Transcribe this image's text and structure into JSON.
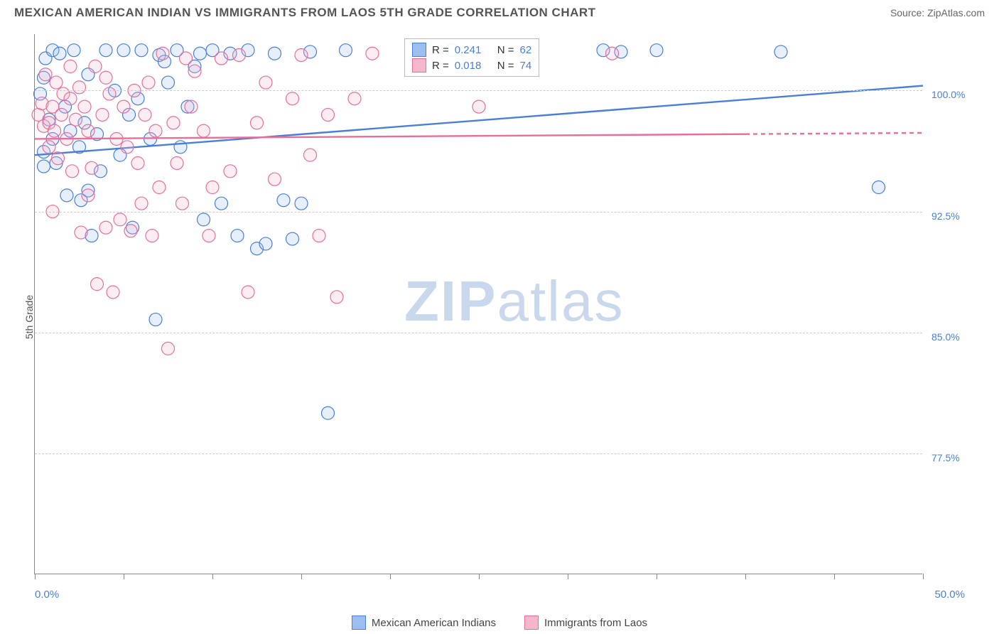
{
  "header": {
    "title": "MEXICAN AMERICAN INDIAN VS IMMIGRANTS FROM LAOS 5TH GRADE CORRELATION CHART",
    "source_prefix": "Source: ",
    "source_name": "ZipAtlas.com"
  },
  "chart": {
    "type": "scatter",
    "y_axis_label": "5th Grade",
    "xlim": [
      0,
      50
    ],
    "ylim": [
      70,
      103.5
    ],
    "x_tick_positions": [
      0,
      5,
      10,
      15,
      20,
      25,
      30,
      35,
      40,
      45,
      50
    ],
    "x_start_label": "0.0%",
    "x_end_label": "50.0%",
    "y_ticks": [
      {
        "value": 77.5,
        "label": "77.5%"
      },
      {
        "value": 85.0,
        "label": "85.0%"
      },
      {
        "value": 92.5,
        "label": "92.5%"
      },
      {
        "value": 100.0,
        "label": "100.0%"
      }
    ],
    "grid_color": "#cccccc",
    "axis_color": "#888888",
    "background_color": "#ffffff",
    "tick_label_color": "#4a7fd8",
    "marker_radius": 9,
    "marker_stroke_width": 1.2,
    "marker_fill_opacity": 0.25,
    "trend_line_width": 2.4,
    "trend_dash": "6,5",
    "series": [
      {
        "id": "mexican",
        "label": "Mexican American Indians",
        "color_stroke": "#4a7fd8",
        "color_fill": "#9cbef0",
        "R": "0.241",
        "N": "62",
        "trend": {
          "x1": 0,
          "y1": 96.0,
          "x2": 50,
          "y2": 100.3,
          "extrapolate_from": 50
        },
        "points": [
          [
            0.3,
            99.8
          ],
          [
            0.5,
            96.2
          ],
          [
            0.5,
            95.3
          ],
          [
            0.6,
            102.0
          ],
          [
            0.8,
            98.2
          ],
          [
            1.0,
            97.0
          ],
          [
            1.2,
            95.5
          ],
          [
            1.0,
            102.5
          ],
          [
            1.4,
            102.3
          ],
          [
            1.7,
            99.0
          ],
          [
            2.0,
            97.5
          ],
          [
            2.2,
            102.5
          ],
          [
            2.5,
            96.5
          ],
          [
            2.6,
            93.2
          ],
          [
            2.8,
            98.0
          ],
          [
            3.0,
            101.0
          ],
          [
            3.2,
            91.0
          ],
          [
            3.5,
            97.3
          ],
          [
            3.7,
            95.0
          ],
          [
            4.0,
            102.5
          ],
          [
            4.5,
            100.0
          ],
          [
            4.8,
            96.0
          ],
          [
            5.0,
            102.5
          ],
          [
            5.3,
            98.5
          ],
          [
            5.5,
            91.5
          ],
          [
            5.8,
            99.5
          ],
          [
            6.0,
            102.5
          ],
          [
            6.5,
            97.0
          ],
          [
            6.8,
            85.8
          ],
          [
            7.0,
            102.2
          ],
          [
            7.3,
            101.8
          ],
          [
            7.5,
            100.5
          ],
          [
            8.0,
            102.5
          ],
          [
            8.2,
            96.5
          ],
          [
            8.6,
            99.0
          ],
          [
            9.0,
            101.5
          ],
          [
            9.3,
            102.3
          ],
          [
            9.5,
            92.0
          ],
          [
            10.0,
            102.5
          ],
          [
            10.5,
            93.0
          ],
          [
            11.0,
            102.3
          ],
          [
            11.4,
            91.0
          ],
          [
            12.0,
            102.5
          ],
          [
            12.5,
            90.2
          ],
          [
            13.0,
            90.5
          ],
          [
            13.5,
            102.3
          ],
          [
            14.0,
            93.2
          ],
          [
            14.5,
            90.8
          ],
          [
            15.0,
            93.0
          ],
          [
            15.5,
            102.4
          ],
          [
            16.5,
            80.0
          ],
          [
            17.5,
            102.5
          ],
          [
            22.0,
            102.5
          ],
          [
            23.5,
            102.5
          ],
          [
            32.0,
            102.5
          ],
          [
            33.0,
            102.4
          ],
          [
            35.0,
            102.5
          ],
          [
            42.0,
            102.4
          ],
          [
            47.5,
            94.0
          ],
          [
            0.5,
            100.8
          ],
          [
            1.8,
            93.5
          ],
          [
            3.0,
            93.8
          ]
        ]
      },
      {
        "id": "laos",
        "label": "Immigrants from Laos",
        "color_stroke": "#e86f9a",
        "color_fill": "#f5b7cc",
        "R": "0.018",
        "N": "74",
        "trend": {
          "x1": 0,
          "y1": 97.0,
          "x2": 40,
          "y2": 97.3,
          "extrapolate_from": 40
        },
        "points": [
          [
            0.2,
            98.5
          ],
          [
            0.4,
            99.2
          ],
          [
            0.5,
            97.8
          ],
          [
            0.6,
            101.0
          ],
          [
            0.8,
            98.0
          ],
          [
            0.8,
            96.5
          ],
          [
            1.0,
            99.0
          ],
          [
            1.1,
            97.5
          ],
          [
            1.2,
            100.5
          ],
          [
            1.3,
            95.8
          ],
          [
            1.5,
            98.5
          ],
          [
            1.6,
            99.8
          ],
          [
            1.8,
            97.0
          ],
          [
            2.0,
            99.5
          ],
          [
            2.1,
            95.0
          ],
          [
            2.3,
            98.2
          ],
          [
            2.5,
            100.2
          ],
          [
            2.6,
            91.2
          ],
          [
            2.8,
            99.0
          ],
          [
            3.0,
            97.5
          ],
          [
            3.0,
            93.5
          ],
          [
            3.2,
            95.2
          ],
          [
            3.4,
            101.5
          ],
          [
            3.5,
            88.0
          ],
          [
            3.8,
            98.5
          ],
          [
            4.0,
            91.5
          ],
          [
            4.2,
            99.8
          ],
          [
            4.4,
            87.5
          ],
          [
            4.6,
            97.0
          ],
          [
            4.8,
            92.0
          ],
          [
            5.0,
            99.0
          ],
          [
            5.2,
            96.5
          ],
          [
            5.4,
            91.3
          ],
          [
            5.6,
            100.0
          ],
          [
            5.8,
            95.5
          ],
          [
            6.0,
            93.0
          ],
          [
            6.2,
            98.5
          ],
          [
            6.4,
            100.5
          ],
          [
            6.6,
            91.0
          ],
          [
            6.8,
            97.5
          ],
          [
            7.0,
            94.0
          ],
          [
            7.2,
            102.3
          ],
          [
            7.5,
            84.0
          ],
          [
            7.8,
            98.0
          ],
          [
            8.0,
            95.5
          ],
          [
            8.3,
            93.0
          ],
          [
            8.5,
            102.0
          ],
          [
            8.8,
            99.0
          ],
          [
            9.0,
            101.2
          ],
          [
            9.5,
            97.5
          ],
          [
            9.8,
            91.0
          ],
          [
            10.0,
            94.0
          ],
          [
            10.5,
            102.0
          ],
          [
            11.0,
            95.0
          ],
          [
            11.5,
            102.2
          ],
          [
            12.0,
            87.5
          ],
          [
            12.5,
            98.0
          ],
          [
            13.0,
            100.5
          ],
          [
            13.5,
            94.5
          ],
          [
            14.5,
            99.5
          ],
          [
            15.0,
            102.2
          ],
          [
            15.5,
            96.0
          ],
          [
            16.0,
            91.0
          ],
          [
            16.5,
            98.5
          ],
          [
            17.0,
            87.2
          ],
          [
            18.0,
            99.5
          ],
          [
            19.0,
            102.3
          ],
          [
            22.0,
            102.2
          ],
          [
            25.0,
            99.0
          ],
          [
            28.0,
            102.3
          ],
          [
            32.5,
            102.3
          ],
          [
            1.0,
            92.5
          ],
          [
            2.0,
            101.5
          ],
          [
            4.0,
            100.8
          ]
        ]
      }
    ]
  },
  "legend_top": {
    "R_label": "R =",
    "N_label": "N ="
  },
  "watermark": {
    "text1": "ZIP",
    "text2": "atlas",
    "color": "#c9d8ed"
  }
}
